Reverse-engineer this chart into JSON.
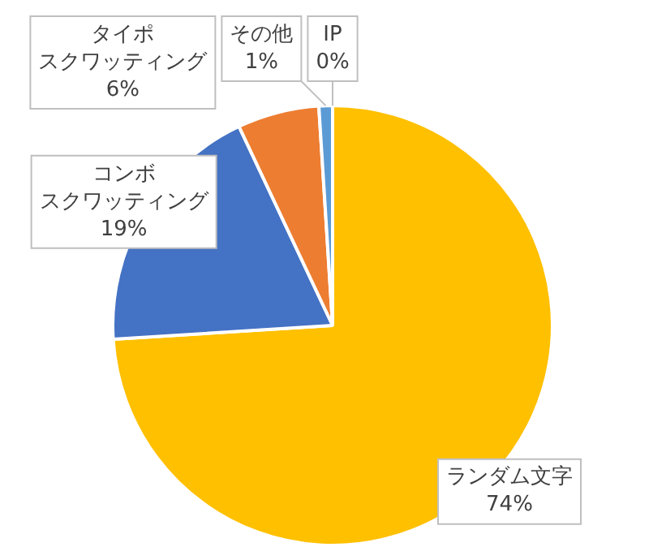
{
  "chart_data": {
    "type": "pie",
    "categories": [
      "ランダム文字",
      "コンボスクワッティング",
      "タイポスクワッティング",
      "その他",
      "IP"
    ],
    "values": [
      74,
      19,
      6,
      1,
      0
    ],
    "value_labels": [
      "74%",
      "19%",
      "6%",
      "1%",
      "0%"
    ],
    "colors": [
      "#ffc000",
      "#4472c4",
      "#ed7d31",
      "#5b9bd5",
      "#a5a5a5"
    ],
    "legend": false
  }
}
